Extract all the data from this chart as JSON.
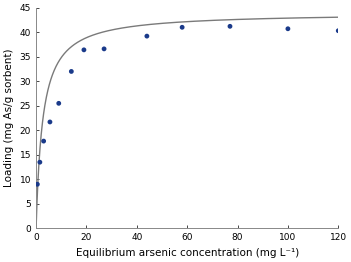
{
  "scatter_x": [
    0.5,
    1.5,
    3.0,
    5.5,
    9.0,
    14.0,
    19.0,
    27.0,
    44.0,
    58.0,
    77.0,
    100.0,
    120.0
  ],
  "scatter_y": [
    9.0,
    13.5,
    17.8,
    21.7,
    25.5,
    32.0,
    36.4,
    36.6,
    39.2,
    41.0,
    41.2,
    40.7,
    40.3
  ],
  "langmuir_qmax": 44.0,
  "langmuir_KL": 0.38,
  "x_min": 0,
  "x_max": 120,
  "y_min": 0,
  "y_max": 45,
  "x_ticks": [
    0,
    20,
    40,
    60,
    80,
    100,
    120
  ],
  "y_ticks": [
    0,
    5,
    10,
    15,
    20,
    25,
    30,
    35,
    40,
    45
  ],
  "xlabel": "Equilibrium arsenic concentration (mg L⁻¹)",
  "ylabel": "Loading (mg As/g sorbent)",
  "scatter_color": "#1a3a8a",
  "line_color": "#7a7a7a",
  "scatter_size": 12,
  "line_width": 1.0,
  "background_color": "#ffffff",
  "tick_fontsize": 6.5,
  "label_fontsize": 7.5
}
